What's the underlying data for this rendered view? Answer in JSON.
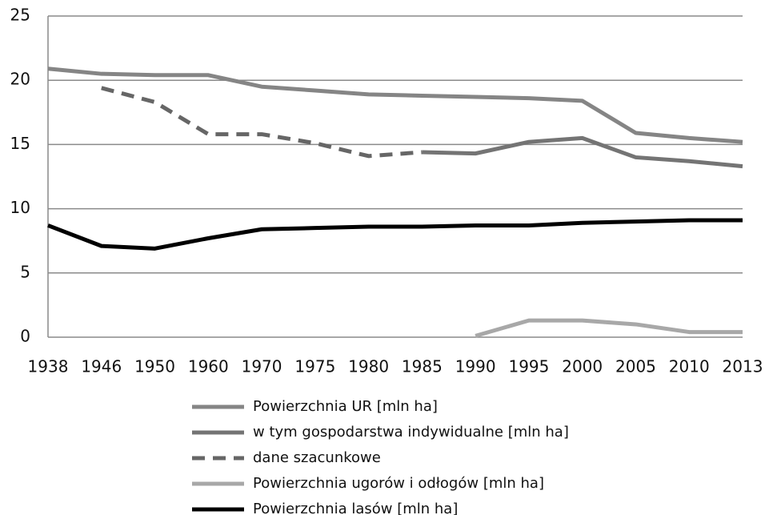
{
  "chart_data": {
    "type": "line",
    "categories": [
      "1938",
      "1946",
      "1950",
      "1960",
      "1970",
      "1975",
      "1980",
      "1985",
      "1990",
      "1995",
      "2000",
      "2005",
      "2010",
      "2013"
    ],
    "series": [
      {
        "name": "Powierzchnia UR [mln ha]",
        "color": "#858585",
        "dashed": false,
        "values": [
          20.9,
          20.5,
          20.4,
          20.4,
          19.5,
          19.2,
          18.9,
          18.8,
          18.7,
          18.6,
          18.4,
          15.9,
          15.5,
          15.2
        ]
      },
      {
        "name": "w tym gospodarstwa indywidualne [mln ha]",
        "color": "#747474",
        "dashed": false,
        "values": [
          null,
          null,
          null,
          null,
          null,
          null,
          null,
          14.4,
          14.3,
          15.2,
          15.5,
          14.0,
          13.7,
          13.3
        ]
      },
      {
        "name": "dane szacunkowe",
        "color": "#666666",
        "dashed": true,
        "values": [
          null,
          19.4,
          18.3,
          15.8,
          15.8,
          15.1,
          14.1,
          14.4,
          null,
          null,
          null,
          null,
          null,
          null
        ]
      },
      {
        "name": "Powierzchnia ugorów i odłogów [mln ha]",
        "color": "#a8a8a8",
        "dashed": false,
        "values": [
          null,
          null,
          null,
          null,
          null,
          null,
          null,
          null,
          0.1,
          1.3,
          1.3,
          1.0,
          0.4,
          0.4
        ]
      },
      {
        "name": "Powierzchnia lasów [mln ha]",
        "color": "#000000",
        "dashed": false,
        "values": [
          8.7,
          7.1,
          6.9,
          7.7,
          8.4,
          8.5,
          8.6,
          8.6,
          8.7,
          8.7,
          8.9,
          9.0,
          9.1,
          9.1
        ]
      }
    ],
    "ylim": [
      0,
      25
    ],
    "yticks": [
      0,
      5,
      10,
      15,
      20,
      25
    ],
    "grid": true,
    "legend": "bottom"
  }
}
